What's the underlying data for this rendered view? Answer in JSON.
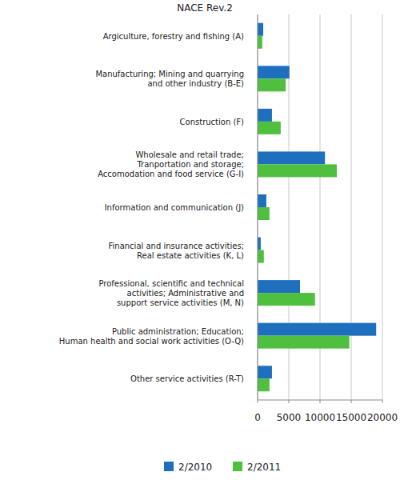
{
  "chart_data": {
    "type": "bar",
    "orientation": "horizontal",
    "title": "NACE Rev.2",
    "categories": [
      "Argiculture, forestry and fishing (A)",
      "Manufacturing; Mining and quarrying\nand other industry (B-E)",
      "Construction (F)",
      "Wholesale and retail trade;\nTranportation and storage;\nAccomodation and food service (G-I)",
      "Information and communication (J)",
      "Financial and insurance activities;\nReal estate activities (K, L)",
      "Professional, scientific and technical\nactivities; Administrative and\nsupport service activities (M, N)",
      "Public administration; Education;\nHuman health and social work activities (O-Q)",
      "Other service activities (R-T)"
    ],
    "series": [
      {
        "name": "2/2010",
        "color": "#1f6fbf",
        "values": [
          900,
          5100,
          2300,
          10800,
          1400,
          500,
          6800,
          19000,
          2300
        ]
      },
      {
        "name": "2/2011",
        "color": "#4fbf3f",
        "values": [
          750,
          4500,
          3700,
          12700,
          1900,
          1000,
          9200,
          14700,
          1900
        ]
      }
    ],
    "xlim": [
      0,
      20000
    ],
    "xticks": [
      0,
      5000,
      10000,
      15000,
      20000
    ],
    "grid": true,
    "legend": "bottom"
  }
}
